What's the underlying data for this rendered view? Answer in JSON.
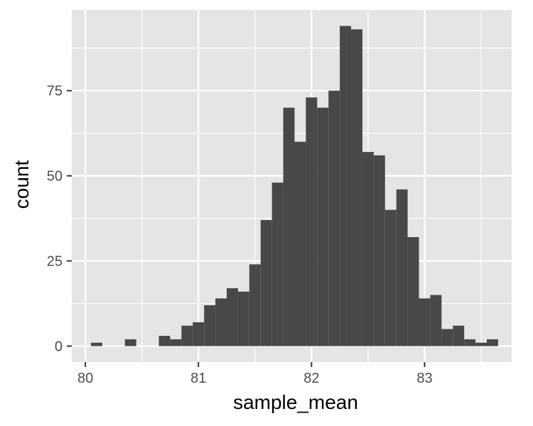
{
  "chart_data": {
    "type": "bar",
    "xlabel": "sample_mean",
    "ylabel": "count",
    "xlim": [
      79.88,
      83.77
    ],
    "ylim": [
      -4.7,
      98.7
    ],
    "x_ticks": [
      80,
      81,
      82,
      83
    ],
    "x_tick_labels": [
      "80",
      "81",
      "82",
      "83"
    ],
    "x_minor_ticks": [
      80.5,
      81.5,
      82.5,
      83.5
    ],
    "y_ticks": [
      0,
      25,
      50,
      75
    ],
    "y_tick_labels": [
      "0",
      "25",
      "50",
      "75"
    ],
    "y_minor_ticks": [
      12.5,
      37.5,
      62.5,
      87.5
    ],
    "grid": true,
    "colors": {
      "panel": "#e5e5e5",
      "grid": "#ffffff",
      "bar": "#484848"
    },
    "bins": {
      "width": 0.1,
      "starts": [
        80.05,
        80.15,
        80.25,
        80.35,
        80.45,
        80.55,
        80.65,
        80.75,
        80.85,
        80.95,
        81.05,
        81.15,
        81.25,
        81.35,
        81.45,
        81.55,
        81.65,
        81.75,
        81.85,
        81.95,
        82.05,
        82.15,
        82.25,
        82.35,
        82.45,
        82.55,
        82.65,
        82.75,
        82.85,
        82.95,
        83.05,
        83.15,
        83.25,
        83.35,
        83.45,
        83.55
      ],
      "counts": [
        1,
        0,
        0,
        2,
        0,
        0,
        3,
        2,
        6,
        7,
        12,
        14,
        17,
        16,
        24,
        37,
        48,
        70,
        60,
        73,
        70,
        75,
        94,
        93,
        57,
        56,
        40,
        46,
        32,
        14,
        15,
        5,
        6,
        2,
        1,
        2
      ]
    }
  }
}
